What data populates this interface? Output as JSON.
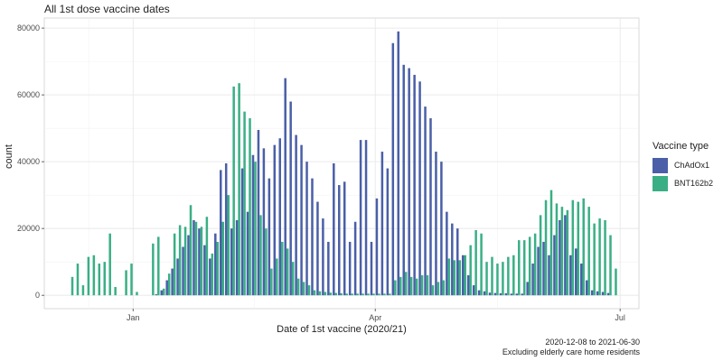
{
  "chart_data": {
    "type": "bar",
    "title": "All 1st dose vaccine dates",
    "xlabel": "Date of 1st vaccine (2020/21)",
    "ylabel": "count",
    "ylim": [
      -4000,
      83000
    ],
    "yticks": [
      0,
      20000,
      40000,
      60000,
      80000
    ],
    "xlim": [
      "2020-11-29",
      "2021-07-08"
    ],
    "xticks": [
      {
        "date": "2021-01-01",
        "label": "Jan"
      },
      {
        "date": "2021-04-01",
        "label": "Apr"
      },
      {
        "date": "2021-07-01",
        "label": "Jul"
      }
    ],
    "grid": true,
    "legend": {
      "title": "Vaccine type",
      "position": "right"
    },
    "caption": [
      "2020-12-08 to 2021-06-30",
      "Excluding elderly care home residents"
    ],
    "bar_period_days": 2,
    "series": [
      {
        "name": "ChAdOx1",
        "color": "#4a5fa8",
        "start": "2021-01-04",
        "values": [
          0,
          0,
          300,
          1500,
          4500,
          8000,
          11000,
          14500,
          18000,
          22500,
          20000,
          15000,
          11000,
          18500,
          37500,
          39500,
          20000,
          22500,
          38000,
          25000,
          42000,
          49500,
          44000,
          35000,
          45000,
          47000,
          65000,
          58000,
          48000,
          45000,
          40000,
          35000,
          28000,
          23000,
          16000,
          39500,
          33000,
          34000,
          16000,
          22000,
          46500,
          46500,
          16000,
          29000,
          43000,
          38000,
          75500,
          79000,
          69000,
          68000,
          66000,
          64000,
          56500,
          53000,
          43000,
          40000,
          25000,
          21500,
          20000,
          12000,
          6000,
          3000,
          1500,
          1200,
          800,
          700,
          600,
          600,
          500,
          500,
          500,
          4000,
          9500,
          14500,
          16000,
          12000,
          18000,
          22500,
          24000,
          12000,
          14000,
          9500,
          4500,
          1500,
          1200,
          1000,
          700
        ]
      },
      {
        "name": "BNT162b2",
        "color": "#3aaf85",
        "start": "2020-12-08",
        "values": [
          5500,
          9500,
          3000,
          11500,
          12000,
          9500,
          10000,
          18500,
          2500,
          0,
          7500,
          9500,
          1000,
          0,
          0,
          15500,
          17500,
          2000,
          6500,
          18500,
          21000,
          20500,
          27000,
          22000,
          20500,
          23500,
          12500,
          16000,
          22000,
          30000,
          62500,
          63500,
          55000,
          53000,
          40000,
          24000,
          20000,
          8000,
          11000,
          16000,
          14000,
          10000,
          5000,
          4000,
          3000,
          1500,
          1200,
          1000,
          800,
          700,
          600,
          500,
          500,
          500,
          500,
          500,
          500,
          500,
          500,
          500,
          4500,
          5500,
          7000,
          5500,
          5000,
          6000,
          6000,
          3000,
          4000,
          4500,
          11000,
          10500,
          10500,
          12000,
          15000,
          19500,
          18500,
          10000,
          11500,
          9500,
          10000,
          11500,
          12000,
          16500,
          16500,
          17500,
          18500,
          24000,
          28500,
          31500,
          27500,
          26500,
          25500,
          28500,
          28000,
          29000,
          26500,
          21500,
          23000,
          22500,
          18000,
          8000
        ]
      }
    ]
  }
}
